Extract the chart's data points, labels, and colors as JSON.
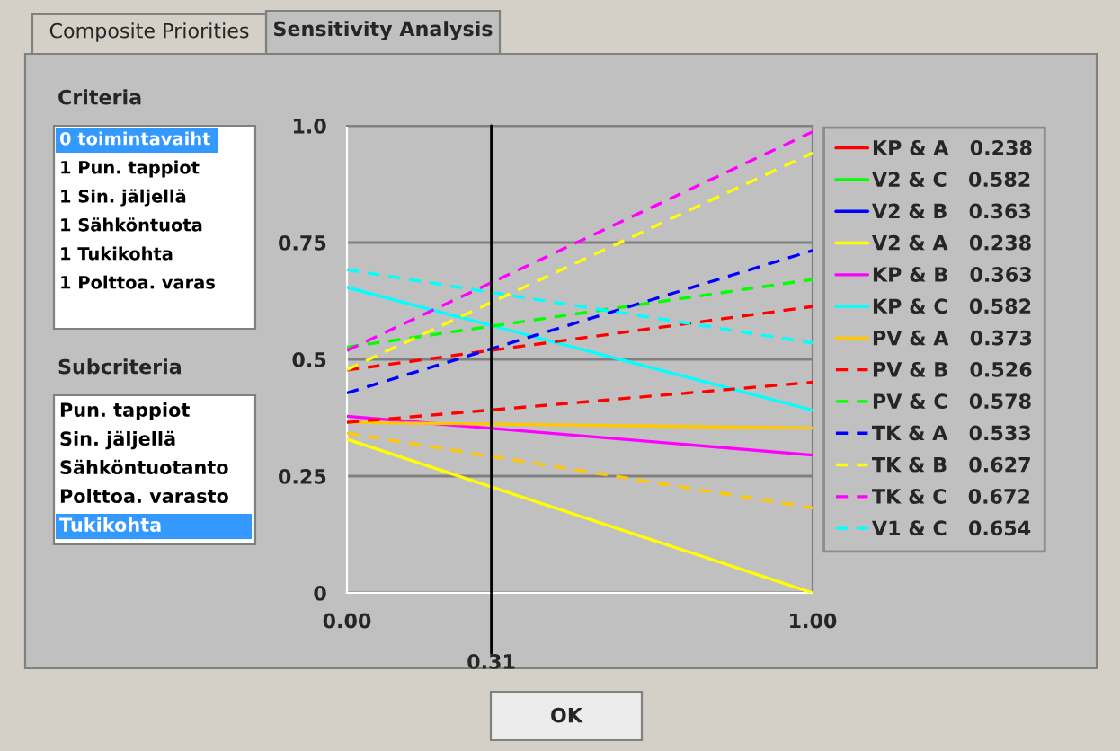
{
  "chart_data": {
    "type": "line",
    "title": "Sensitivity Analysis",
    "x": [
      0,
      1
    ],
    "xlim": [
      0,
      1
    ],
    "xticks": [
      {
        "value": 0,
        "label": "0.00"
      },
      {
        "value": 1,
        "label": "1.00"
      }
    ],
    "ylim": [
      0,
      1
    ],
    "yticks": [
      {
        "value": 0,
        "label": "0"
      },
      0.25,
      0.5,
      0.75,
      {
        "value": 1,
        "label": "1.0"
      }
    ],
    "grid": "y",
    "legend": "right",
    "marker": "none",
    "ref_lines": [
      {
        "axis": "x",
        "value": 0.31,
        "label": "0.31",
        "color": "#000000"
      }
    ],
    "series": [
      {
        "name": "KP & A   0.238",
        "color": "#ff0000",
        "line_style": "solid",
        "values": [
          null,
          null
        ]
      },
      {
        "name": "V2 & C   0.582",
        "color": "#00ff00",
        "line_style": "solid",
        "values": [
          null,
          null
        ]
      },
      {
        "name": "V2 & B   0.363",
        "color": "#0000ff",
        "line_style": "solid",
        "values": [
          null,
          null
        ]
      },
      {
        "name": "V2 & A   0.238",
        "color": "#ffff00",
        "line_style": "solid",
        "values": [
          0.329,
          0.0
        ]
      },
      {
        "name": "KP & B   0.363",
        "color": "#ff00ff",
        "line_style": "solid",
        "values": [
          0.378,
          0.295
        ]
      },
      {
        "name": "KP & C   0.582",
        "color": "#00ffff",
        "line_style": "solid",
        "values": [
          0.654,
          0.391
        ]
      },
      {
        "name": "PV & A   0.373",
        "color": "#ffc800",
        "line_style": "solid",
        "values": [
          0.365,
          0.353
        ]
      },
      {
        "name": "PV & B   0.526",
        "color": "#ff0000",
        "line_style": "dashed",
        "values": [
          0.477,
          0.613
        ]
      },
      {
        "name": "PV & C   0.578",
        "color": "#00ff00",
        "line_style": "dashed",
        "values": [
          0.526,
          0.671
        ]
      },
      {
        "name": "TK & A   0.533",
        "color": "#0000ff",
        "line_style": "dashed",
        "values": [
          0.428,
          0.733
        ]
      },
      {
        "name": "TK & B   0.627",
        "color": "#ffff00",
        "line_style": "dashed",
        "values": [
          0.478,
          0.942
        ]
      },
      {
        "name": "TK & C   0.672",
        "color": "#ff00ff",
        "line_style": "dashed",
        "values": [
          0.519,
          0.987
        ]
      },
      {
        "name": "V1 & C   0.654",
        "color": "#00ffff",
        "line_style": "dashed",
        "values": [
          0.692,
          0.535
        ]
      },
      {
        "color": "#ffc800",
        "line_style": "dashed",
        "values": [
          0.342,
          0.182
        ]
      },
      {
        "color": "#ff0000",
        "line_style": "dashed",
        "values": [
          0.365,
          0.451
        ]
      }
    ],
    "annotations": [
      "Composite Priorities",
      "Criteria",
      "0 toimintavaiht",
      "1 Pun. tappiot",
      "1 Sin. jäljellä",
      "1 Sähköntuota",
      "1 Tukikohta",
      "1 Polttoa. varas",
      "Subcriteria",
      "Pun. tappiot",
      "Sin. jäljellä",
      "Sähköntuotanto",
      "Polttoa. varasto",
      "Tukikohta",
      "OK"
    ]
  }
}
